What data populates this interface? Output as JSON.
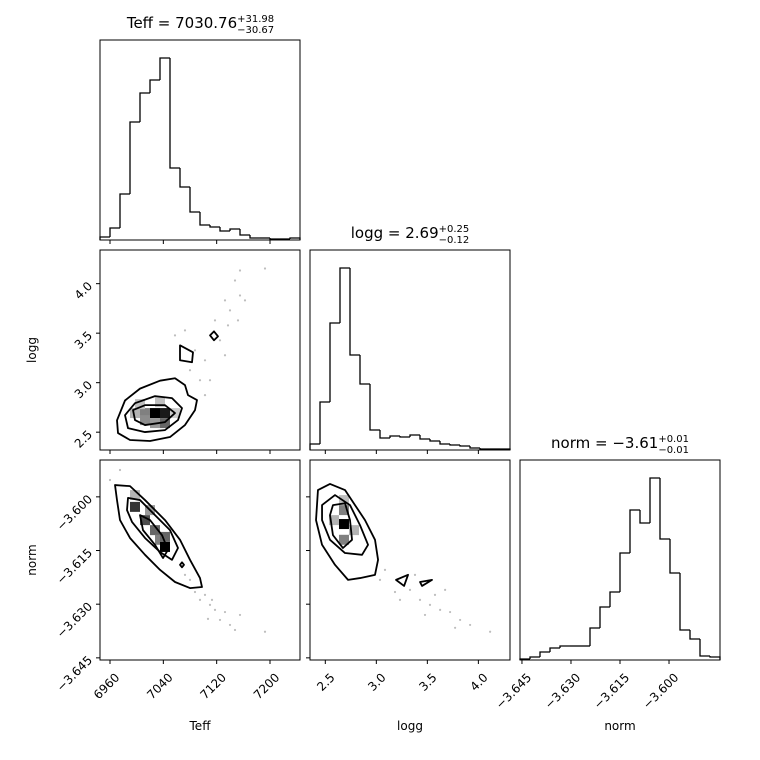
{
  "chart_data": [
    {
      "type": "histogram",
      "title": "Teff = 7030.76",
      "title_sup": "+31.98",
      "title_sub": "−30.67",
      "bins": [
        6945,
        6960,
        6975,
        6990,
        7005,
        7020,
        7035,
        7050,
        7065,
        7080,
        7095,
        7110,
        7125,
        7140,
        7155,
        7170,
        7185,
        7200,
        7215,
        7230,
        7245
      ],
      "counts": [
        3,
        12,
        46,
        118,
        147,
        160,
        182,
        72,
        53,
        28,
        15,
        13,
        9,
        11,
        5,
        2,
        2,
        1,
        1,
        2
      ],
      "xlim": [
        6945,
        7245
      ],
      "ylim": [
        0,
        200
      ],
      "xticks": [
        6960,
        7040,
        7120,
        7200
      ],
      "color": "#000000"
    },
    {
      "type": "contour",
      "xlim": [
        6945,
        7245
      ],
      "ylim": [
        2.32,
        4.34
      ],
      "xticks": [
        6960,
        7040,
        7120,
        7200
      ],
      "yticks": [
        2.5,
        {
          "value": 3,
          "label": "3.0"
        },
        3.5,
        {
          "value": 4,
          "label": "4.0"
        }
      ],
      "ylabel": "logg",
      "points": {
        "x": [
          7102.5,
          7117.5,
          7132.5,
          7140,
          7155,
          7147.5,
          7155,
          7192.5,
          7137,
          7125,
          7095,
          7110,
          7102.5,
          7087.5,
          7072.5,
          7132.5,
          7162.5,
          7080,
          7057.5,
          7152
        ],
        "y": [
          3.226,
          3.629,
          3.831,
          3.73,
          3.881,
          4.032,
          4.133,
          4.153,
          3.579,
          3.428,
          3.025,
          3.025,
          2.874,
          3.327,
          3.528,
          3.277,
          3.831,
          3.126,
          3.478,
          3.629
        ]
      },
      "cells": {
        "x": [
          7027.5,
          7042.5,
          7012.5,
          7012.5,
          6997.5,
          7027.5,
          7042.5,
          7005,
          7035,
          7057.5
        ],
        "y": [
          2.693,
          2.693,
          2.693,
          2.622,
          2.693,
          2.592,
          2.592,
          2.783,
          2.803,
          2.693
        ],
        "shade": [
          1,
          0.9,
          0.5,
          0.45,
          0.3,
          0.4,
          0.6,
          0.25,
          0.25,
          0.2
        ]
      },
      "contours": [
        {
          "x": [
            6970.5,
            6982.5,
            7005,
            7035,
            7057.5,
            7072.5,
            7077,
            7090.5,
            7087.5,
            7072.5,
            7050,
            7020,
            6990,
            6972
          ],
          "y": [
            2.62,
            2.82,
            2.94,
            3.02,
            3.045,
            2.975,
            2.874,
            2.824,
            2.723,
            2.572,
            2.451,
            2.411,
            2.421,
            2.491
          ]
        },
        {
          "x": [
            6982.5,
            6997.5,
            7027.5,
            7053,
            7068,
            7062,
            7042.5,
            7012.5,
            6987
          ],
          "y": [
            2.672,
            2.793,
            2.864,
            2.844,
            2.743,
            2.622,
            2.521,
            2.501,
            2.541
          ]
        },
        {
          "x": [
            6994.5,
            7012.5,
            7042.5,
            7057.5,
            7042.5,
            7012.5,
            6997.5
          ],
          "y": [
            2.723,
            2.773,
            2.773,
            2.693,
            2.602,
            2.572,
            2.622
          ]
        },
        {
          "x": [
            7065,
            7084.5,
            7083,
            7065
          ],
          "y": [
            3.377,
            3.307,
            3.206,
            3.226
          ]
        },
        {
          "x": [
            7110,
            7116,
            7122,
            7116
          ],
          "y": [
            3.478,
            3.518,
            3.468,
            3.428
          ]
        }
      ]
    },
    {
      "type": "histogram",
      "title": "logg = 2.69",
      "title_sup": "+0.25",
      "title_sub": "−0.12",
      "bins": [
        2.35,
        2.448,
        2.546,
        2.644,
        2.742,
        2.84,
        2.938,
        3.036,
        3.134,
        3.232,
        3.33,
        3.428,
        3.526,
        3.624,
        3.722,
        3.82,
        3.918,
        4.016,
        4.114,
        4.212,
        4.31
      ],
      "counts": [
        6,
        48,
        127,
        182,
        95,
        66,
        20,
        12,
        14,
        13,
        15,
        11,
        9,
        6,
        5,
        4,
        2,
        1,
        1,
        1
      ],
      "xlim": [
        2.35,
        4.31
      ],
      "ylim": [
        0,
        200
      ],
      "xticks": [
        2.5,
        3,
        3.5,
        4
      ],
      "color": "#000000"
    },
    {
      "type": "contour",
      "xlim": [
        6945,
        7245
      ],
      "ylim": [
        -3.6456,
        -3.5897
      ],
      "xticks": [
        6960,
        7040,
        7120,
        7200
      ],
      "yticks": [
        {
          "value": -3.6,
          "label": "−3.600"
        },
        {
          "value": -3.615,
          "label": "−3.615"
        },
        {
          "value": -3.63,
          "label": "−3.630"
        },
        {
          "value": -3.645,
          "label": "−3.645"
        }
      ],
      "xlabel": "Teff",
      "ylabel": "norm",
      "points": {
        "x": [
          6975,
          7080,
          7087.5,
          7102.5,
          7110,
          7117.5,
          7125,
          7140,
          7192.5,
          7113,
          7095,
          7132.5,
          7072.5,
          7155,
          7147.5,
          6960,
          7107
        ],
        "y": [
          -3.5925,
          -3.6232,
          -3.6266,
          -3.6274,
          -3.6302,
          -3.6316,
          -3.6344,
          -3.6358,
          -3.6377,
          -3.6288,
          -3.6288,
          -3.6322,
          -3.6218,
          -3.633,
          -3.6372,
          -3.5953,
          -3.6341
        ]
      },
      "cells": {
        "x": [
          6997.5,
          7012.5,
          7027.5,
          7035,
          7042.5,
          7042.5,
          6997.5,
          7020
        ],
        "y": [
          -3.6028,
          -3.6065,
          -3.6093,
          -3.612,
          -3.614,
          -3.6112,
          -3.5995,
          -3.6037
        ],
        "shade": [
          0.8,
          0.7,
          0.6,
          0.5,
          1,
          0.6,
          0.3,
          0.4
        ]
      },
      "contours": [
        {
          "x": [
            6967.5,
            6990,
            7012.5,
            7042.5,
            7065,
            7080,
            7095,
            7098,
            7080,
            7057.5,
            7035,
            7012.5,
            6990,
            6975,
            6970.5
          ],
          "y": [
            -3.5967,
            -3.597,
            -3.6009,
            -3.6065,
            -3.612,
            -3.6176,
            -3.6227,
            -3.6252,
            -3.6255,
            -3.6238,
            -3.6204,
            -3.6162,
            -3.6115,
            -3.6065,
            -3.6009
          ]
        },
        {
          "x": [
            6987,
            7005,
            7027.5,
            7050,
            7062,
            7053,
            7035,
            7012.5,
            6993,
            6985.5
          ],
          "y": [
            -3.6003,
            -3.6009,
            -3.6051,
            -3.6093,
            -3.6143,
            -3.6176,
            -3.6154,
            -3.6115,
            -3.607,
            -3.6037
          ]
        },
        {
          "x": [
            7005,
            7020,
            7038,
            7047,
            7039.5,
            7027.5,
            7009.5
          ],
          "y": [
            -3.6051,
            -3.6065,
            -3.6107,
            -3.6148,
            -3.6171,
            -3.6134,
            -3.6093
          ]
        },
        {
          "x": [
            7065,
            7068,
            7071,
            7068
          ],
          "y": [
            -3.619,
            -3.6183,
            -3.619,
            -3.6197
          ]
        }
      ]
    },
    {
      "type": "contour",
      "xlim": [
        2.35,
        4.31
      ],
      "ylim": [
        -3.6456,
        -3.5897
      ],
      "xticks": [
        2.5,
        {
          "value": 3,
          "label": "3.0"
        },
        3.5,
        {
          "value": 4,
          "label": "4.0"
        }
      ],
      "yticks": [
        -3.6,
        -3.615,
        -3.63,
        -3.645
      ],
      "xlabel": "logg",
      "points": {
        "x": [
          3.036,
          3.183,
          3.33,
          3.428,
          3.526,
          3.625,
          3.723,
          3.821,
          3.919,
          4.115,
          3.379,
          3.575,
          3.772,
          3.232,
          3.085,
          3.674,
          3.477
        ],
        "y": [
          -3.6232,
          -3.6266,
          -3.626,
          -3.6288,
          -3.6302,
          -3.6316,
          -3.6322,
          -3.6344,
          -3.6358,
          -3.6377,
          -3.6218,
          -3.6274,
          -3.6366,
          -3.6288,
          -3.6204,
          -3.626,
          -3.633
        ]
      },
      "cells": {
        "x": [
          2.683,
          2.683,
          2.683,
          2.585,
          2.781,
          2.683
        ],
        "y": [
          -3.6076,
          -3.612,
          -3.6037,
          -3.6065,
          -3.6093,
          -3.6009
        ],
        "shade": [
          1,
          0.5,
          0.5,
          0.3,
          0.3,
          0.25
        ]
      },
      "contours": [
        {
          "x": [
            2.428,
            2.546,
            2.693,
            2.791,
            2.889,
            2.987,
            3.017,
            2.987,
            2.84,
            2.723,
            2.595,
            2.468,
            2.409
          ],
          "y": [
            -3.5981,
            -3.5964,
            -3.5981,
            -3.6023,
            -3.6065,
            -3.612,
            -3.6176,
            -3.6218,
            -3.6227,
            -3.6232,
            -3.619,
            -3.6134,
            -3.6065
          ]
        },
        {
          "x": [
            2.468,
            2.595,
            2.742,
            2.84,
            2.919,
            2.86,
            2.693,
            2.546,
            2.468
          ],
          "y": [
            -3.6023,
            -3.5995,
            -3.6023,
            -3.6079,
            -3.6134,
            -3.6162,
            -3.6157,
            -3.612,
            -3.6065
          ]
        },
        {
          "x": [
            2.575,
            2.693,
            2.742,
            2.762,
            2.673,
            2.575,
            2.546
          ],
          "y": [
            -3.6023,
            -3.6018,
            -3.6065,
            -3.612,
            -3.6143,
            -3.6107,
            -3.6051
          ]
        },
        {
          "x": [
            3.193,
            3.311,
            3.272
          ],
          "y": [
            -3.6232,
            -3.6218,
            -3.6249
          ]
        },
        {
          "x": [
            3.428,
            3.546,
            3.448
          ],
          "y": [
            -3.6238,
            -3.6232,
            -3.6249
          ]
        }
      ]
    },
    {
      "type": "histogram",
      "title": "norm = −3.61",
      "title_sup": "+0.01",
      "title_sub": "−0.01",
      "bins": [
        -3.6456,
        -3.64254,
        -3.63948,
        -3.63642,
        -3.63336,
        -3.6303,
        -3.62724,
        -3.62418,
        -3.62112,
        -3.61806,
        -3.615,
        -3.61194,
        -3.60888,
        -3.60582,
        -3.60276,
        -3.5997,
        -3.59664,
        -3.59358,
        -3.59052,
        -3.58746,
        -3.5844
      ],
      "counts": [
        1,
        3,
        8,
        12,
        14,
        14,
        14,
        32,
        53,
        68,
        107,
        150,
        137,
        182,
        121,
        87,
        30,
        21,
        4,
        3
      ],
      "xlim": [
        -3.6456,
        -3.5844
      ],
      "ylim": [
        0,
        200
      ],
      "xticks": [
        {
          "value": -3.645,
          "label": "−3.645"
        },
        {
          "value": -3.63,
          "label": "−3.630"
        },
        {
          "value": -3.615,
          "label": "−3.615"
        },
        {
          "value": -3.6,
          "label": "−3.600"
        }
      ],
      "xlabel": "norm",
      "color": "#000000"
    }
  ]
}
